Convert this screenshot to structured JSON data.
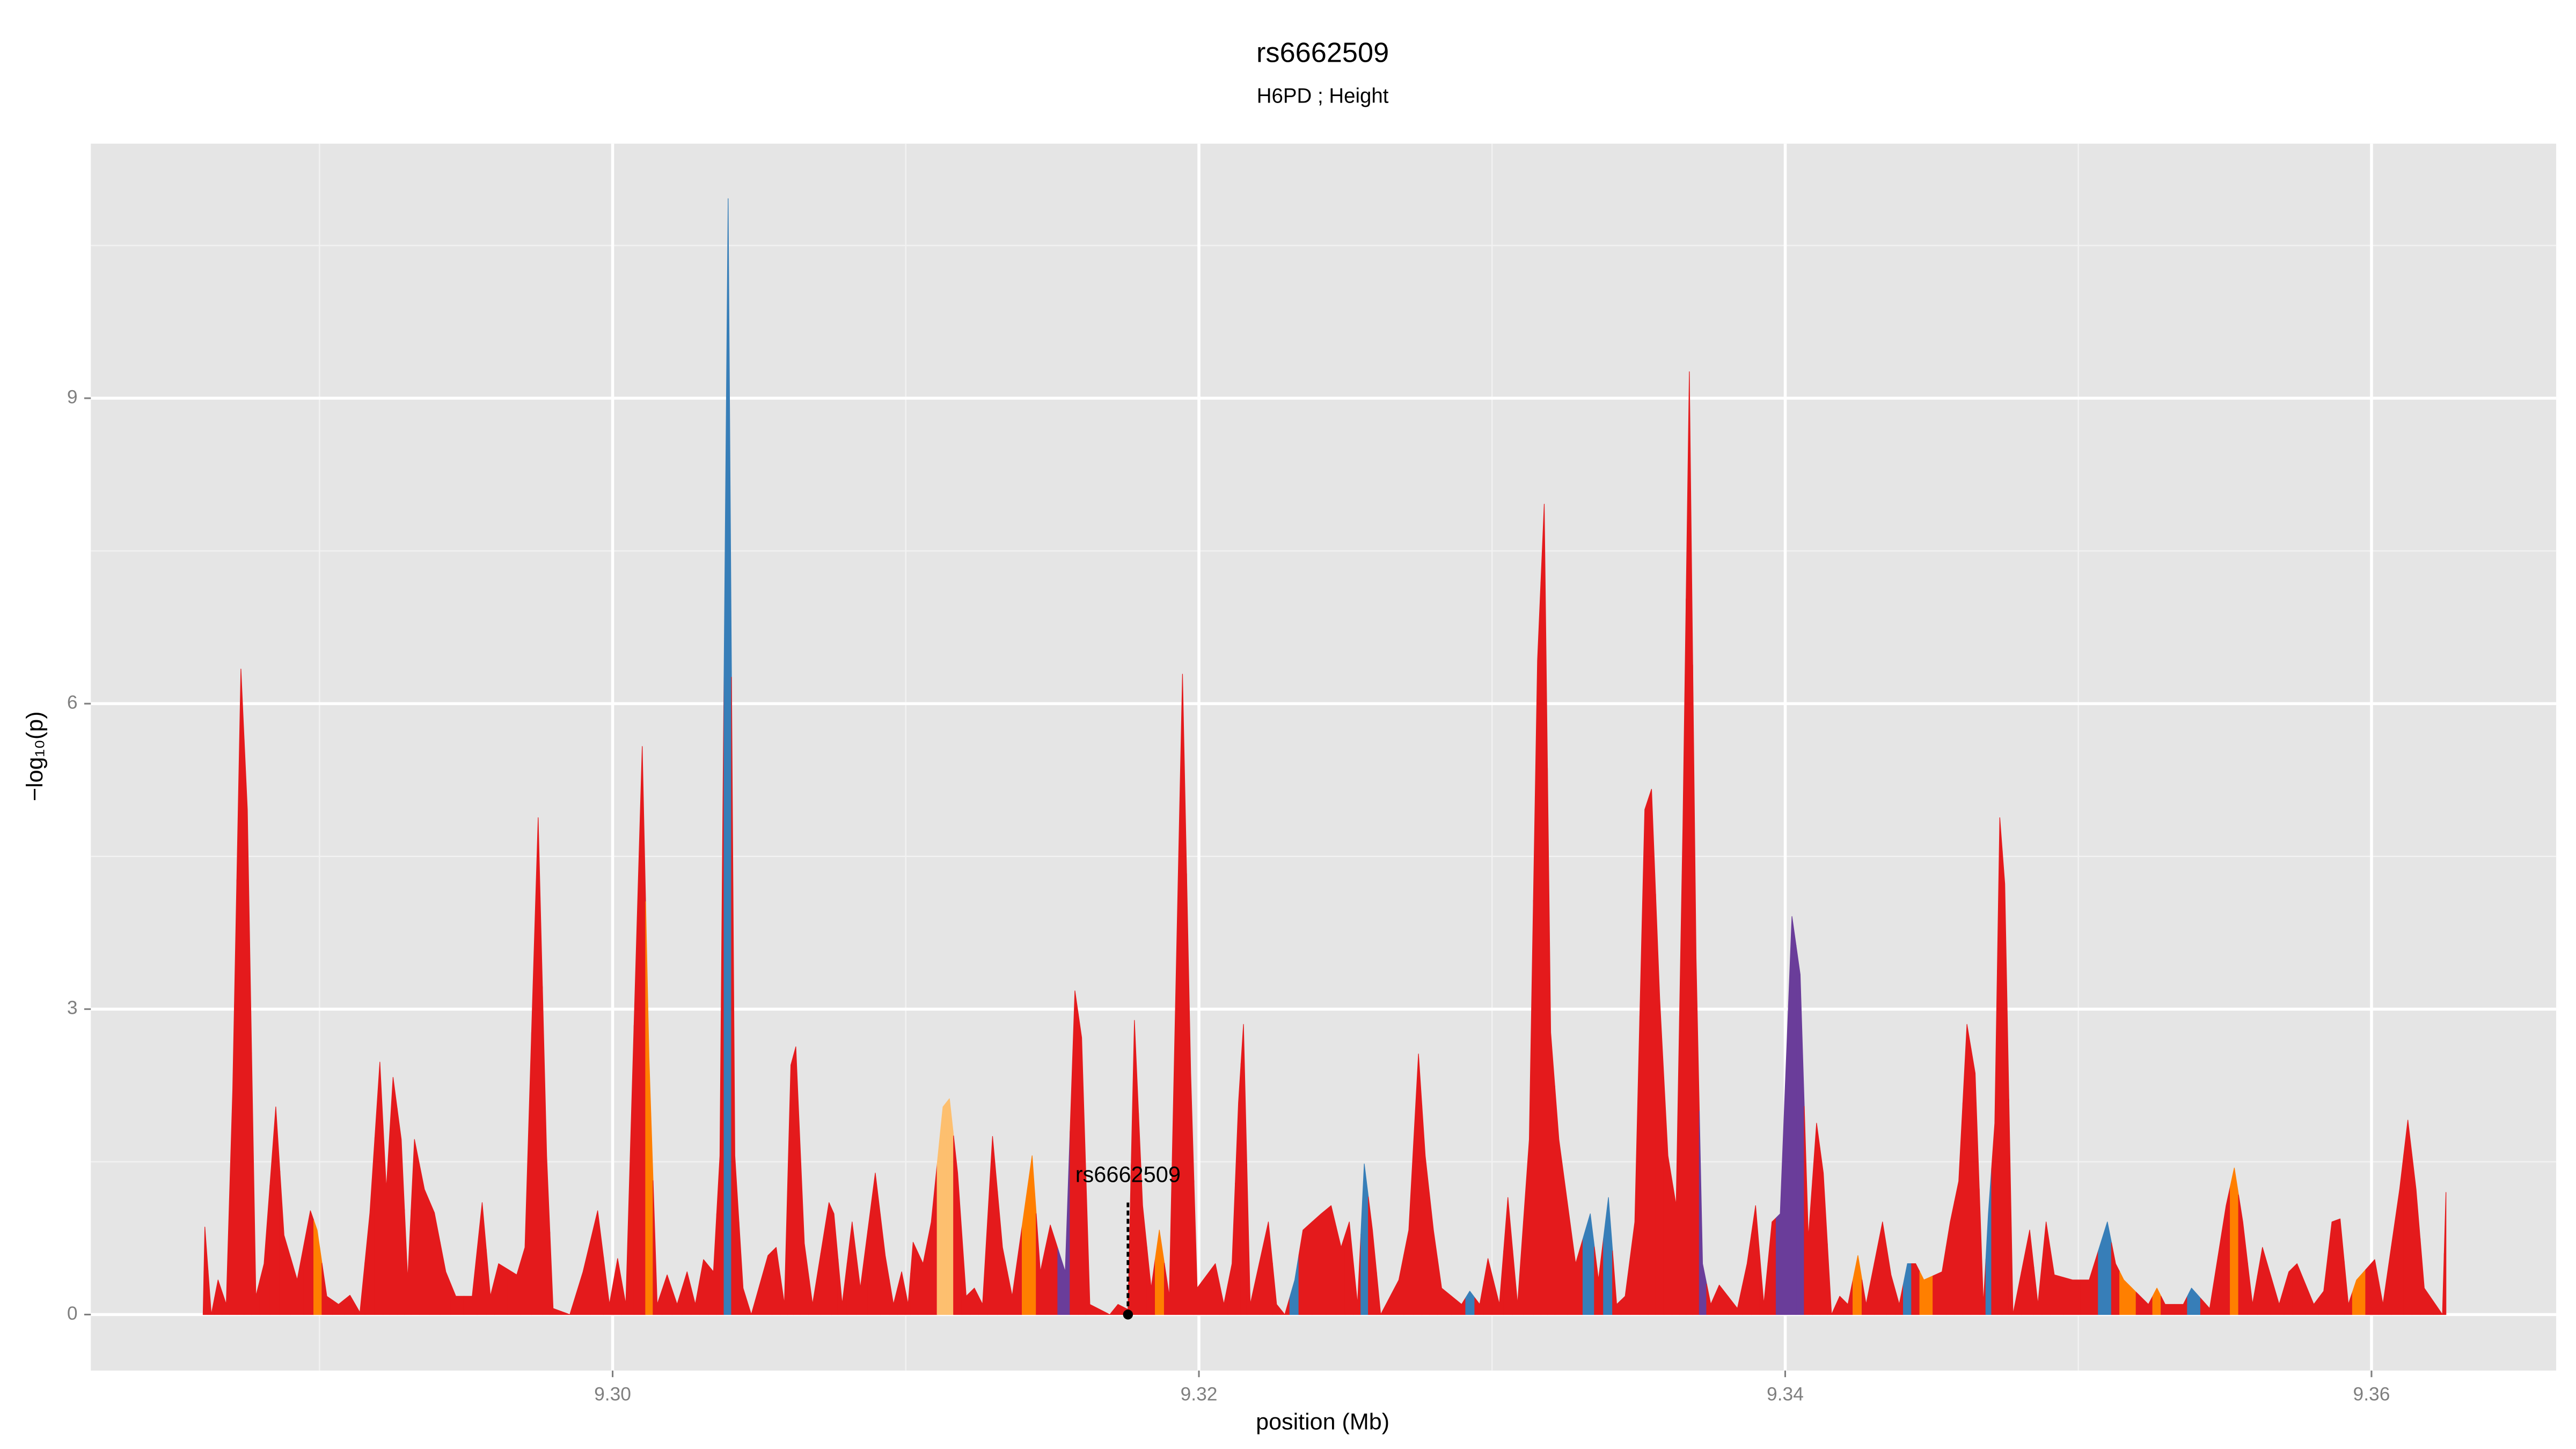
{
  "chart_data": {
    "type": "area",
    "title": "rs6662509",
    "subtitle": "H6PD ; Height",
    "x_label": "position (Mb)",
    "y_label": "−log₁₀(p)",
    "xlim": [
      9.2822,
      9.3663
    ],
    "ylim": [
      -0.55,
      11.5
    ],
    "xticks": [
      {
        "value": 9.3,
        "label": "9.30"
      },
      {
        "value": 9.32,
        "label": "9.32"
      },
      {
        "value": 9.34,
        "label": "9.34"
      },
      {
        "value": 9.36,
        "label": "9.36"
      }
    ],
    "yticks": [
      0,
      3,
      6,
      9
    ],
    "x_minor_grid": [
      9.29,
      9.31,
      9.33,
      9.35
    ],
    "y_minor_grid": [
      1.5,
      4.5,
      7.5,
      10.5
    ],
    "grid": true,
    "annotation": {
      "text": "rs6662509",
      "x": 9.31758,
      "y": 0,
      "line_top": 1.1
    },
    "x": [
      9.28603,
      9.28609,
      9.28631,
      9.28654,
      9.28682,
      9.28704,
      9.28732,
      9.28754,
      9.28783,
      9.28811,
      9.28851,
      9.28879,
      9.28924,
      9.28969,
      9.28992,
      9.29025,
      9.29065,
      9.29104,
      9.29138,
      9.29172,
      9.29206,
      9.29228,
      9.29251,
      9.29279,
      9.29301,
      9.29324,
      9.29358,
      9.29392,
      9.29431,
      9.29465,
      9.29521,
      9.29555,
      9.29583,
      9.29611,
      9.29673,
      9.29701,
      9.29746,
      9.29775,
      9.29797,
      9.29854,
      9.29899,
      9.29949,
      9.29989,
      9.30017,
      9.30045,
      9.30101,
      9.30124,
      9.30152,
      9.30186,
      9.3022,
      9.30254,
      9.30282,
      9.3031,
      9.30344,
      9.30366,
      9.30394,
      9.30417,
      9.30445,
      9.30473,
      9.3053,
      9.30558,
      9.30586,
      9.30608,
      9.30625,
      9.30654,
      9.30682,
      9.30738,
      9.30755,
      9.30783,
      9.30817,
      9.30845,
      9.30896,
      9.3093,
      9.30958,
      9.30986,
      9.31008,
      9.31025,
      9.31059,
      9.31087,
      9.31127,
      9.31149,
      9.31177,
      9.31206,
      9.31234,
      9.31262,
      9.31296,
      9.3133,
      9.31363,
      9.31431,
      9.31459,
      9.31493,
      9.31544,
      9.31577,
      9.316,
      9.31628,
      9.31696,
      9.31724,
      9.31758,
      9.3178,
      9.31808,
      9.31837,
      9.31865,
      9.31899,
      9.31944,
      9.31972,
      9.31994,
      9.32056,
      9.32085,
      9.32113,
      9.32135,
      9.32152,
      9.32175,
      9.32237,
      9.32265,
      9.32293,
      9.32327,
      9.32355,
      9.32417,
      9.32451,
      9.32485,
      9.32513,
      9.32541,
      9.32564,
      9.32592,
      9.3262,
      9.32682,
      9.32716,
      9.32749,
      9.32772,
      9.328,
      9.32828,
      9.32896,
      9.32924,
      9.32958,
      9.32986,
      9.33025,
      9.33054,
      9.33087,
      9.33127,
      9.33155,
      9.33178,
      9.332,
      9.33228,
      9.33285,
      9.33335,
      9.33363,
      9.33397,
      9.33425,
      9.33454,
      9.33487,
      9.33521,
      9.33544,
      9.33572,
      9.336,
      9.33628,
      9.33651,
      9.33673,
      9.33696,
      9.33718,
      9.33746,
      9.33775,
      9.33837,
      9.3387,
      9.33899,
      9.33927,
      9.33955,
      9.33983,
      9.34023,
      9.34051,
      9.34079,
      9.34107,
      9.3413,
      9.34158,
      9.34186,
      9.34214,
      9.34248,
      9.34276,
      9.34332,
      9.34361,
      9.34389,
      9.34417,
      9.34445,
      9.34473,
      9.34535,
      9.34563,
      9.34592,
      9.3462,
      9.34648,
      9.34676,
      9.34693,
      9.34715,
      9.34732,
      9.34749,
      9.34777,
      9.34834,
      9.34862,
      9.3489,
      9.34918,
      9.3498,
      9.35037,
      9.35099,
      9.35127,
      9.35155,
      9.35239,
      9.35268,
      9.35296,
      9.35358,
      9.35386,
      9.35448,
      9.35504,
      9.35532,
      9.35561,
      9.35594,
      9.35628,
      9.35685,
      9.35718,
      9.35746,
      9.35803,
      9.35837,
      9.35865,
      9.35893,
      9.35921,
      9.35949,
      9.36011,
      9.36039,
      9.36096,
      9.36124,
      9.36152,
      9.3618,
      9.36242,
      9.36254
    ],
    "values": [
      0,
      0.86,
      0,
      0.34,
      0.1,
      2.2,
      6.34,
      4.96,
      0.18,
      0.5,
      2.04,
      0.78,
      0.34,
      1.02,
      0.83,
      0.18,
      0.1,
      0.19,
      0.02,
      1.0,
      2.48,
      1.23,
      2.33,
      1.72,
      0.34,
      1.72,
      1.23,
      1.0,
      0.42,
      0.18,
      0.18,
      1.1,
      0.18,
      0.5,
      0.39,
      0.66,
      4.88,
      1.56,
      0.06,
      0,
      0.42,
      1.02,
      0.1,
      0.55,
      0.1,
      5.58,
      2.53,
      0.1,
      0.39,
      0.1,
      0.42,
      0.1,
      0.54,
      0.42,
      1.56,
      10.96,
      1.56,
      0.26,
      0,
      0.58,
      0.66,
      0.1,
      2.45,
      2.63,
      0.7,
      0.1,
      1.1,
      0.99,
      0.1,
      0.91,
      0.26,
      1.39,
      0.58,
      0.1,
      0.42,
      0.1,
      0.71,
      0.5,
      0.91,
      2.04,
      2.12,
      1.39,
      0.18,
      0.26,
      0.1,
      1.75,
      0.66,
      0.18,
      1.56,
      0.42,
      0.88,
      0.42,
      3.18,
      2.72,
      0.1,
      0,
      0.1,
      0.05,
      2.89,
      1.07,
      0.26,
      0.83,
      0.18,
      6.29,
      2.37,
      0.26,
      0.5,
      0.1,
      0.5,
      2.08,
      2.85,
      0.1,
      0.91,
      0.1,
      0,
      0.34,
      0.83,
      0.99,
      1.07,
      0.66,
      0.91,
      0.1,
      1.48,
      0.83,
      0,
      0.34,
      0.83,
      2.56,
      1.56,
      0.83,
      0.26,
      0.1,
      0.23,
      0.1,
      0.55,
      0.1,
      1.15,
      0.1,
      1.72,
      6.42,
      7.96,
      2.77,
      1.72,
      0.5,
      0.99,
      0.34,
      1.15,
      0.1,
      0.18,
      0.91,
      4.96,
      5.16,
      3.1,
      1.56,
      1.07,
      4.8,
      9.26,
      3.5,
      0.5,
      0.1,
      0.29,
      0.06,
      0.5,
      1.07,
      0.1,
      0.91,
      0.99,
      3.91,
      3.34,
      0.75,
      1.88,
      1.39,
      0,
      0.18,
      0.1,
      0.58,
      0.1,
      0.91,
      0.39,
      0.1,
      0.5,
      0.5,
      0.34,
      0.42,
      0.91,
      1.31,
      2.85,
      2.37,
      0.1,
      0.99,
      1.88,
      4.88,
      4.23,
      0,
      0.83,
      0.1,
      0.91,
      0.39,
      0.34,
      0.34,
      0.91,
      0.5,
      0.34,
      0.1,
      0.26,
      0.1,
      0.1,
      0.26,
      0.06,
      1.07,
      1.44,
      0.91,
      0.1,
      0.66,
      0.1,
      0.42,
      0.5,
      0.1,
      0.23,
      0.91,
      0.94,
      0.1,
      0.34,
      0.54,
      0.1,
      1.23,
      1.91,
      1.23,
      0.26,
      0,
      1.2
    ],
    "colors": [
      "#e41a1c",
      "#e41a1c",
      "#e41a1c",
      "#e41a1c",
      "#e41a1c",
      "#e41a1c",
      "#e41a1c",
      "#e41a1c",
      "#e41a1c",
      "#e41a1c",
      "#e41a1c",
      "#e41a1c",
      "#e41a1c",
      "#e41a1c",
      "#ff7f00",
      "#e41a1c",
      "#e41a1c",
      "#e41a1c",
      "#e41a1c",
      "#e41a1c",
      "#e41a1c",
      "#e41a1c",
      "#e41a1c",
      "#e41a1c",
      "#e41a1c",
      "#e41a1c",
      "#e41a1c",
      "#e41a1c",
      "#e41a1c",
      "#e41a1c",
      "#e41a1c",
      "#e41a1c",
      "#e41a1c",
      "#e41a1c",
      "#e41a1c",
      "#e41a1c",
      "#e41a1c",
      "#e41a1c",
      "#e41a1c",
      "#e41a1c",
      "#e41a1c",
      "#e41a1c",
      "#e41a1c",
      "#e41a1c",
      "#e41a1c",
      "#e41a1c",
      "#ff7f00",
      "#e41a1c",
      "#e41a1c",
      "#e41a1c",
      "#e41a1c",
      "#e41a1c",
      "#e41a1c",
      "#e41a1c",
      "#e41a1c",
      "#377eb8",
      "#e41a1c",
      "#e41a1c",
      "#e41a1c",
      "#e41a1c",
      "#e41a1c",
      "#e41a1c",
      "#e41a1c",
      "#e41a1c",
      "#e41a1c",
      "#e41a1c",
      "#e41a1c",
      "#e41a1c",
      "#e41a1c",
      "#e41a1c",
      "#e41a1c",
      "#e41a1c",
      "#e41a1c",
      "#e41a1c",
      "#e41a1c",
      "#e41a1c",
      "#e41a1c",
      "#e41a1c",
      "#e41a1c",
      "#fdbf6f",
      "#fdbf6f",
      "#e41a1c",
      "#e41a1c",
      "#e41a1c",
      "#e41a1c",
      "#e41a1c",
      "#e41a1c",
      "#e41a1c",
      "#ff7f00",
      "#e41a1c",
      "#e41a1c",
      "#6a3d9a",
      "#e41a1c",
      "#e41a1c",
      "#e41a1c",
      "#e41a1c",
      "#e41a1c",
      "#e41a1c",
      "#e41a1c",
      "#e41a1c",
      "#e41a1c",
      "#ff7f00",
      "#e41a1c",
      "#e41a1c",
      "#e41a1c",
      "#e41a1c",
      "#e41a1c",
      "#e41a1c",
      "#e41a1c",
      "#e41a1c",
      "#e41a1c",
      "#e41a1c",
      "#e41a1c",
      "#e41a1c",
      "#e41a1c",
      "#377eb8",
      "#e41a1c",
      "#e41a1c",
      "#e41a1c",
      "#e41a1c",
      "#e41a1c",
      "#e41a1c",
      "#377eb8",
      "#e41a1c",
      "#e41a1c",
      "#e41a1c",
      "#e41a1c",
      "#e41a1c",
      "#e41a1c",
      "#e41a1c",
      "#e41a1c",
      "#e41a1c",
      "#377eb8",
      "#e41a1c",
      "#e41a1c",
      "#e41a1c",
      "#e41a1c",
      "#e41a1c",
      "#e41a1c",
      "#e41a1c",
      "#e41a1c",
      "#e41a1c",
      "#e41a1c",
      "#e41a1c",
      "#377eb8",
      "#e41a1c",
      "#377eb8",
      "#e41a1c",
      "#e41a1c",
      "#e41a1c",
      "#e41a1c",
      "#e41a1c",
      "#e41a1c",
      "#e41a1c",
      "#e41a1c",
      "#e41a1c",
      "#e41a1c",
      "#e41a1c",
      "#6a3d9a",
      "#e41a1c",
      "#e41a1c",
      "#e41a1c",
      "#e41a1c",
      "#e41a1c",
      "#e41a1c",
      "#e41a1c",
      "#6a3d9a",
      "#6a3d9a",
      "#6a3d9a",
      "#e41a1c",
      "#e41a1c",
      "#e41a1c",
      "#e41a1c",
      "#e41a1c",
      "#e41a1c",
      "#ff7f00",
      "#e41a1c",
      "#e41a1c",
      "#e41a1c",
      "#e41a1c",
      "#377eb8",
      "#e41a1c",
      "#ff7f00",
      "#e41a1c",
      "#e41a1c",
      "#e41a1c",
      "#e41a1c",
      "#e41a1c",
      "#e41a1c",
      "#377eb8",
      "#e41a1c",
      "#e41a1c",
      "#e41a1c",
      "#e41a1c",
      "#e41a1c",
      "#e41a1c",
      "#e41a1c",
      "#e41a1c",
      "#e41a1c",
      "#e41a1c",
      "#377eb8",
      "#e41a1c",
      "#ff7f00",
      "#e41a1c",
      "#ff7f00",
      "#e41a1c",
      "#e41a1c",
      "#377eb8",
      "#e41a1c",
      "#e41a1c",
      "#ff7f00",
      "#e41a1c",
      "#e41a1c",
      "#e41a1c",
      "#e41a1c",
      "#e41a1c",
      "#e41a1c",
      "#e41a1c",
      "#e41a1c",
      "#e41a1c",
      "#e41a1c",
      "#e41a1c",
      "#ff7f00",
      "#e41a1c",
      "#e41a1c",
      "#e41a1c",
      "#e41a1c",
      "#e41a1c",
      "#e41a1c",
      "#e41a1c",
      "#e41a1c"
    ]
  }
}
